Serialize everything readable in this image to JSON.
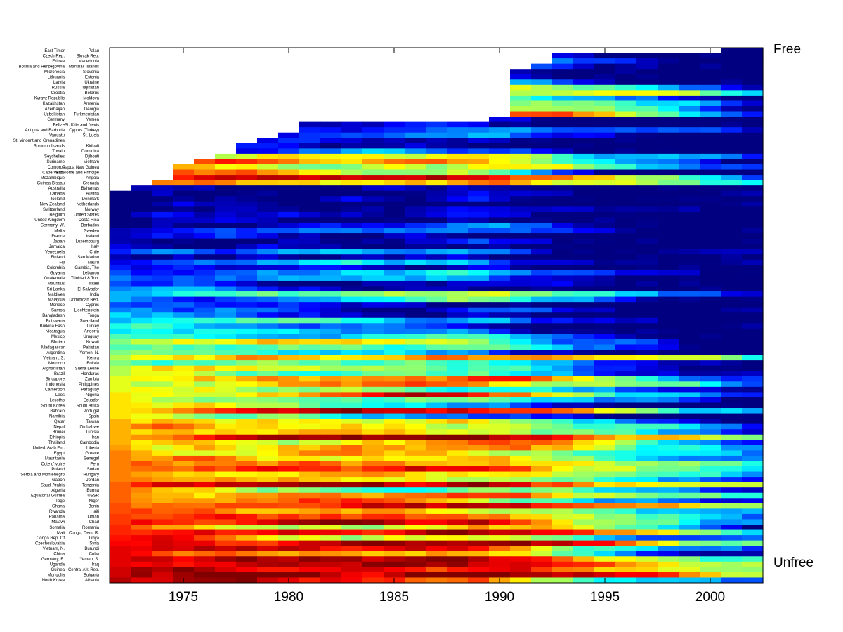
{
  "chart_data": {
    "type": "heatmap",
    "title": "",
    "xlabel": "",
    "ylabel": "",
    "x_range": [
      1972,
      2002
    ],
    "x_ticks": [
      "1975",
      "1980",
      "1985",
      "1990",
      "1995",
      "2000"
    ],
    "colorbar": {
      "top_label": "Free",
      "bottom_label": "Unfree",
      "colormap": "jet"
    },
    "grid": false,
    "rows": [
      {
        "left": "East Timor",
        "right": "Palau",
        "start": 2001,
        "level": 0.0
      },
      {
        "left": "Czech Rep.",
        "right": "Slovak Rep.",
        "start": 1993,
        "level": 0.1
      },
      {
        "left": "Eritrea",
        "right": "Macedonia",
        "start": 1993,
        "level": 0.25
      },
      {
        "left": "Bosnia and Herzegovina",
        "right": "Marshall Islands",
        "start": 1992,
        "level": 0.2
      },
      {
        "left": "Micronesia",
        "right": "Slovenia",
        "start": 1991,
        "level": 0.05
      },
      {
        "left": "Lithuania",
        "right": "Estonia",
        "start": 1991,
        "level": 0.1
      },
      {
        "left": "Latvia",
        "right": "Ukraine",
        "start": 1991,
        "level": 0.3
      },
      {
        "left": "Russia",
        "right": "Tajikistan",
        "start": 1991,
        "level": 0.6
      },
      {
        "left": "Croatia",
        "right": "Belarus",
        "start": 1991,
        "level": 0.55
      },
      {
        "left": "Kyrgyz Republic",
        "right": "Moldova",
        "start": 1991,
        "level": 0.45
      },
      {
        "left": "Kazakhstan",
        "right": "Armenia",
        "start": 1991,
        "level": 0.5
      },
      {
        "left": "Azerbaijan",
        "right": "Georgia",
        "start": 1991,
        "level": 0.55
      },
      {
        "left": "Uzbekistan",
        "right": "Turkmenistan",
        "start": 1991,
        "level": 0.8
      },
      {
        "left": "Germany",
        "right": "Yemen",
        "start": 1990,
        "level": 0.1
      },
      {
        "left": "Belize",
        "right": "St. Kitts and Nevis",
        "start": 1981,
        "level": 0.05
      },
      {
        "left": "Antigua and Barbuda",
        "right": "Cyprus (Turkey)",
        "start": 1981,
        "level": 0.15
      },
      {
        "left": "Vanuatu",
        "right": "St. Lucia",
        "start": 1980,
        "level": 0.1
      },
      {
        "left": "St. Vincent and Grenadines",
        "right": "",
        "start": 1979,
        "level": 0.1
      },
      {
        "left": "Solomon Islands",
        "right": "Kiribati",
        "start": 1978,
        "level": 0.15
      },
      {
        "left": "Tuvalu",
        "right": "Dominica",
        "start": 1978,
        "level": 0.1
      },
      {
        "left": "Seychelles",
        "right": "Djibouti",
        "start": 1977,
        "level": 0.55
      },
      {
        "left": "Suriname",
        "right": "Vietnam",
        "start": 1976,
        "level": 0.8
      },
      {
        "left": "Comoros",
        "right": "Papua New Guinea",
        "start": 1975,
        "level": 0.7
      },
      {
        "left": "Cape Verde",
        "right": "Sao Tome and Principe",
        "start": 1975,
        "level": 0.8
      },
      {
        "left": "Mozambique",
        "right": "Angola",
        "start": 1975,
        "level": 0.85
      },
      {
        "left": "Guinea-Bissau",
        "right": "Grenada",
        "start": 1974,
        "level": 0.75
      },
      {
        "left": "Australia",
        "right": "Bahamas",
        "start": 1973,
        "level": 0.05
      },
      {
        "left": "Canada",
        "right": "Austria",
        "start": 1972,
        "level": 0.0
      },
      {
        "left": "Iceland",
        "right": "Denmark",
        "start": 1972,
        "level": 0.0
      },
      {
        "left": "New Zealand",
        "right": "Netherlands",
        "start": 1972,
        "level": 0.0
      },
      {
        "left": "Switzerland",
        "right": "Norway",
        "start": 1972,
        "level": 0.0
      },
      {
        "left": "Belgium",
        "right": "United States",
        "start": 1972,
        "level": 0.0
      },
      {
        "left": "United Kingdom",
        "right": "Costa Rica",
        "start": 1972,
        "level": 0.0
      },
      {
        "left": "Germany, W.",
        "right": "Barbados",
        "start": 1972,
        "level": 0.0
      },
      {
        "left": "Malta",
        "right": "Sweden",
        "start": 1972,
        "level": 0.05
      },
      {
        "left": "France",
        "right": "Ireland",
        "start": 1972,
        "level": 0.05
      },
      {
        "left": "Japan",
        "right": "Luxembourg",
        "start": 1972,
        "level": 0.05
      },
      {
        "left": "Jamaica",
        "right": "Italy",
        "start": 1972,
        "level": 0.1
      },
      {
        "left": "Venezuela",
        "right": "Chile",
        "start": 1972,
        "level": 0.15
      },
      {
        "left": "Finland",
        "right": "San Marino",
        "start": 1972,
        "level": 0.05
      },
      {
        "left": "Fiji",
        "right": "Nauru",
        "start": 1972,
        "level": 0.1
      },
      {
        "left": "Colombia",
        "right": "Gambia, The",
        "start": 1972,
        "level": 0.15
      },
      {
        "left": "Guyana",
        "right": "Lebanon",
        "start": 1972,
        "level": 0.2
      },
      {
        "left": "Guatemala",
        "right": "Trinidad & Tob.",
        "start": 1972,
        "level": 0.25
      },
      {
        "left": "Mauritius",
        "right": "Israel",
        "start": 1972,
        "level": 0.2
      },
      {
        "left": "Sri Lanka",
        "right": "El Salvador",
        "start": 1972,
        "level": 0.25
      },
      {
        "left": "Maldives",
        "right": "India",
        "start": 1972,
        "level": 0.3
      },
      {
        "left": "Malaysia",
        "right": "Dominican Rep.",
        "start": 1972,
        "level": 0.3
      },
      {
        "left": "Monaco",
        "right": "Cyprus",
        "start": 1972,
        "level": 0.2
      },
      {
        "left": "Samoa",
        "right": "Liechtenstein",
        "start": 1972,
        "level": 0.25
      },
      {
        "left": "Bangladesh",
        "right": "Tonga",
        "start": 1972,
        "level": 0.35
      },
      {
        "left": "Botswana",
        "right": "Swaziland",
        "start": 1972,
        "level": 0.3
      },
      {
        "left": "Burkina Faso",
        "right": "Turkey",
        "start": 1972,
        "level": 0.4
      },
      {
        "left": "Nicaragua",
        "right": "Andorra",
        "start": 1972,
        "level": 0.35
      },
      {
        "left": "Mexico",
        "right": "Uruguay",
        "start": 1972,
        "level": 0.45
      },
      {
        "left": "Bhutan",
        "right": "Kuwait",
        "start": 1972,
        "level": 0.5
      },
      {
        "left": "Madagascar",
        "right": "Pakistan",
        "start": 1972,
        "level": 0.45
      },
      {
        "left": "Argentina",
        "right": "Yemen, N.",
        "start": 1972,
        "level": 0.5
      },
      {
        "left": "Vietnam, S.",
        "right": "Kenya",
        "start": 1972,
        "level": 0.55
      },
      {
        "left": "Morocco",
        "right": "Bolivia",
        "start": 1972,
        "level": 0.5
      },
      {
        "left": "Afghanistan",
        "right": "Sierra Leone",
        "start": 1972,
        "level": 0.55
      },
      {
        "left": "Brazil",
        "right": "Honduras",
        "start": 1972,
        "level": 0.55
      },
      {
        "left": "Singapore",
        "right": "Zambia",
        "start": 1972,
        "level": 0.6
      },
      {
        "left": "Indonesia",
        "right": "Philippines",
        "start": 1972,
        "level": 0.6
      },
      {
        "left": "Cameroon",
        "right": "Paraguay",
        "start": 1972,
        "level": 0.6
      },
      {
        "left": "Laos",
        "right": "Nigeria",
        "start": 1972,
        "level": 0.65
      },
      {
        "left": "Lesotho",
        "right": "Ecuador",
        "start": 1972,
        "level": 0.65
      },
      {
        "left": "South Korea",
        "right": "South Africa",
        "start": 1972,
        "level": 0.65
      },
      {
        "left": "Bahrain",
        "right": "Portugal",
        "start": 1972,
        "level": 0.65
      },
      {
        "left": "Namibia",
        "right": "Spain",
        "start": 1972,
        "level": 0.65
      },
      {
        "left": "Qatar",
        "right": "Taiwan",
        "start": 1972,
        "level": 0.7
      },
      {
        "left": "Nepal",
        "right": "Zimbabwe",
        "start": 1972,
        "level": 0.7
      },
      {
        "left": "Brunei",
        "right": "Tunisia",
        "start": 1972,
        "level": 0.7
      },
      {
        "left": "Ethiopia",
        "right": "Iran",
        "start": 1972,
        "level": 0.7
      },
      {
        "left": "Thailand",
        "right": "Cambodia",
        "start": 1972,
        "level": 0.7
      },
      {
        "left": "United. Arab Em.",
        "right": "Liberia",
        "start": 1972,
        "level": 0.72
      },
      {
        "left": "Egypt",
        "right": "Greece",
        "start": 1972,
        "level": 0.75
      },
      {
        "left": "Mauritania",
        "right": "Senegal",
        "start": 1972,
        "level": 0.75
      },
      {
        "left": "Cote d'Ivoire",
        "right": "Peru",
        "start": 1972,
        "level": 0.75
      },
      {
        "left": "Poland",
        "right": "Sudan",
        "start": 1972,
        "level": 0.75
      },
      {
        "left": "Serbia and Montenegro",
        "right": "Hungary",
        "start": 1972,
        "level": 0.75
      },
      {
        "left": "Gabon",
        "right": "Jordan",
        "start": 1972,
        "level": 0.75
      },
      {
        "left": "Saudi Arabia",
        "right": "Tanzania",
        "start": 1972,
        "level": 0.78
      },
      {
        "left": "Algeria",
        "right": "Burma",
        "start": 1972,
        "level": 0.78
      },
      {
        "left": "Equatorial Guinea",
        "right": "USSR",
        "start": 1972,
        "level": 0.78
      },
      {
        "left": "Togo",
        "right": "Niger",
        "start": 1972,
        "level": 0.78
      },
      {
        "left": "Ghana",
        "right": "Benin",
        "start": 1972,
        "level": 0.8
      },
      {
        "left": "Rwanda",
        "right": "Haiti",
        "start": 1972,
        "level": 0.8
      },
      {
        "left": "Panama",
        "right": "Oman",
        "start": 1972,
        "level": 0.82
      },
      {
        "left": "Malawi",
        "right": "Chad",
        "start": 1972,
        "level": 0.82
      },
      {
        "left": "Somalia",
        "right": "Romania",
        "start": 1972,
        "level": 0.84
      },
      {
        "left": "Mali",
        "right": "Congo, Dem. R.",
        "start": 1972,
        "level": 0.84
      },
      {
        "left": "Congo Rep. Of",
        "right": "Libya",
        "start": 1972,
        "level": 0.86
      },
      {
        "left": "Czechoslovakia",
        "right": "Syria",
        "start": 1972,
        "level": 0.88
      },
      {
        "left": "Vietnam, N.",
        "right": "Burundi",
        "start": 1972,
        "level": 0.9
      },
      {
        "left": "China",
        "right": "Cuba",
        "start": 1972,
        "level": 0.9
      },
      {
        "left": "Germany, E.",
        "right": "Yemen, S.",
        "start": 1972,
        "level": 0.9
      },
      {
        "left": "Uganda",
        "right": "Iraq",
        "start": 1972,
        "level": 0.9
      },
      {
        "left": "Guinea",
        "right": "Central Afr. Rep.",
        "start": 1972,
        "level": 0.92
      },
      {
        "left": "Mongolia",
        "right": "Bulgaria",
        "start": 1972,
        "level": 0.92
      },
      {
        "left": "North Korea",
        "right": "Albania",
        "start": 1972,
        "level": 0.95
      }
    ]
  }
}
